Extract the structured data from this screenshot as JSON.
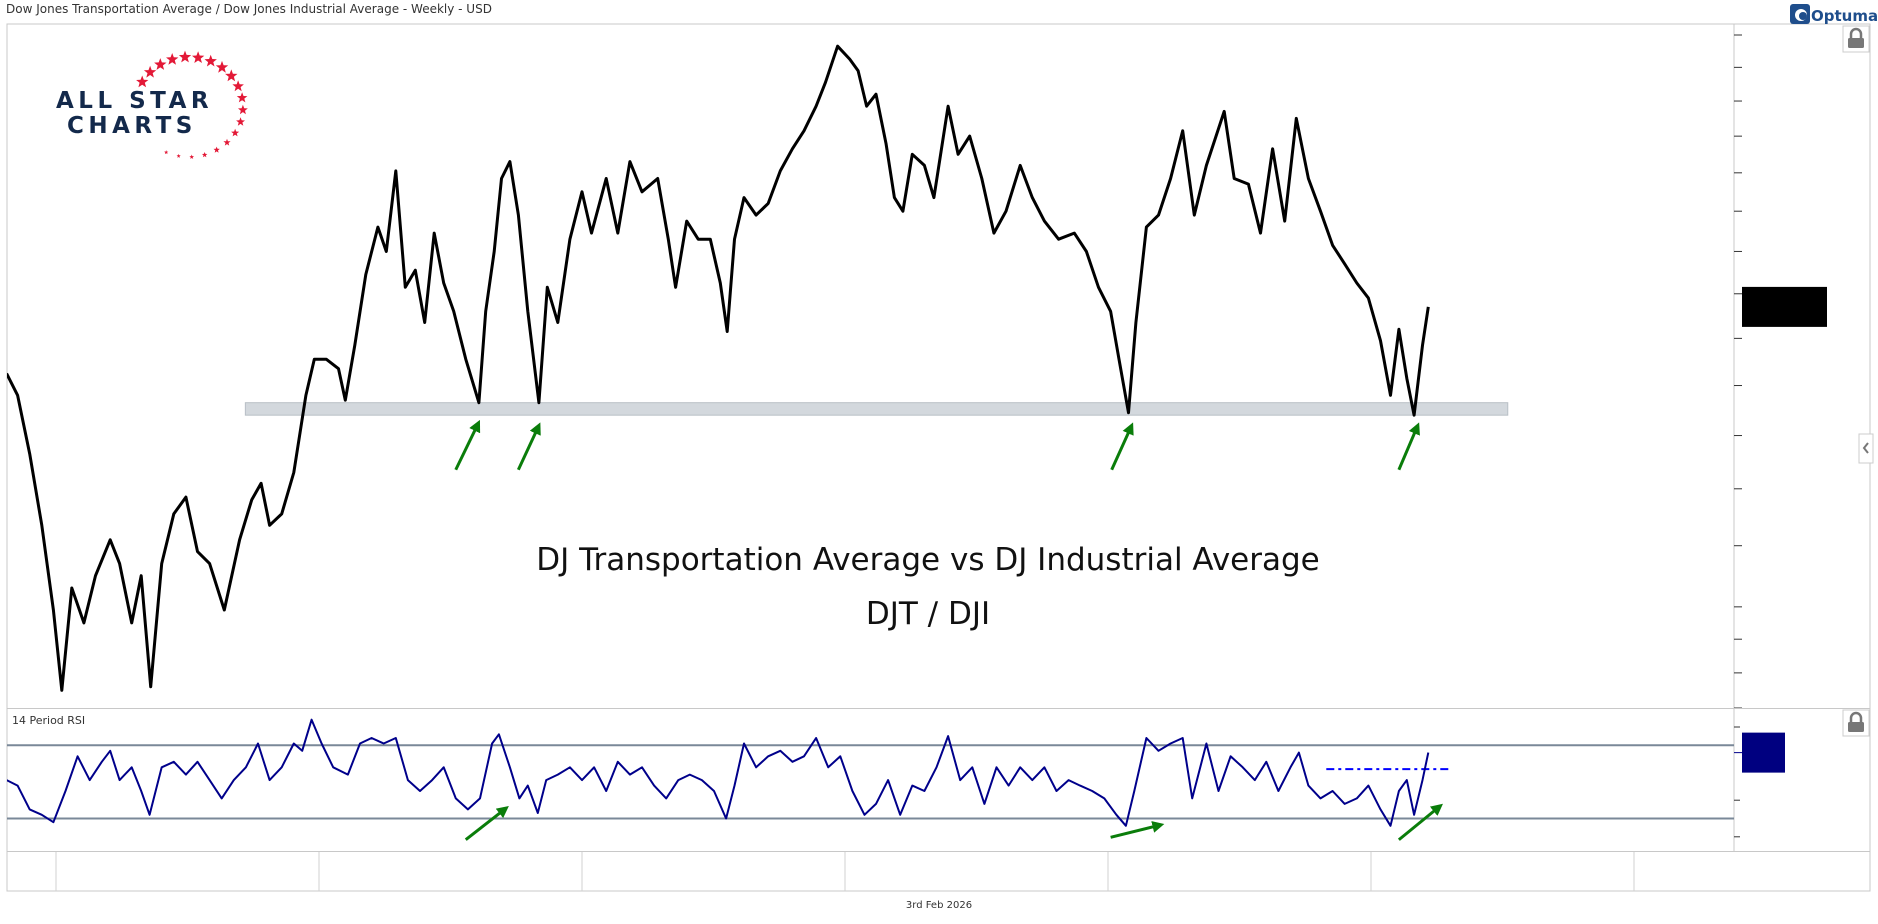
{
  "header": {
    "title": "Dow Jones Transportation Average / Dow Jones Industrial Average - Weekly - USD"
  },
  "footer": {
    "date": "3rd Feb 2026"
  },
  "branding": {
    "logo_text_line1": "ALL STAR",
    "logo_text_line2": "CHARTS",
    "platform_logo": "Optuma"
  },
  "colors": {
    "price_line": "#000000",
    "rsi_line": "#00008b",
    "rsi_bands": "#7a8898",
    "support_band": "#d3d8dd",
    "arrows": "#0a7d0a",
    "rsi_last_box": "#000080",
    "price_last_box": "#000000",
    "logo_navy": "#13294b",
    "logo_red": "#e31937"
  },
  "icons": {
    "lock": "lock-icon",
    "collapse": "chevron-left-icon"
  },
  "chart_data": [
    {
      "type": "line",
      "title": "DJ Transportation Average vs DJ Industrial Average",
      "subtitle": "DJT / DJI",
      "scale": "log",
      "ylim": [
        0.23,
        0.52
      ],
      "xlim": [
        1999.05,
        2032.3
      ],
      "yticks": [
        "0.520",
        "0.500",
        "0.480",
        "0.460",
        "0.440",
        "0.420",
        "0.400",
        "0.380",
        "0.360",
        "0.340",
        "0.320",
        "0.300",
        "0.280",
        "0.260",
        "0.250",
        "0.240",
        "0.230"
      ],
      "xticks": [
        "2000",
        "2005",
        "2010",
        "2015",
        "2020",
        "2025",
        "2030"
      ],
      "last_value": "0.374",
      "grid": false,
      "support_band": {
        "x": [
          2003.6,
          2027.6
        ],
        "y": [
          0.328,
          0.333
        ]
      },
      "arrows": [
        {
          "from": [
            2007.6,
            0.307
          ],
          "to": [
            2008.01,
            0.324
          ]
        },
        {
          "from": [
            2008.79,
            0.307
          ],
          "to": [
            2009.16,
            0.323
          ]
        },
        {
          "from": [
            2020.07,
            0.307
          ],
          "to": [
            2020.43,
            0.323
          ]
        },
        {
          "from": [
            2025.53,
            0.307
          ],
          "to": [
            2025.87,
            0.323
          ]
        }
      ],
      "x": [
        1999.06,
        1999.27,
        1999.5,
        1999.73,
        1999.95,
        2000.11,
        2000.3,
        2000.53,
        2000.75,
        2001.03,
        2001.21,
        2001.44,
        2001.62,
        2001.8,
        2002.01,
        2002.24,
        2002.47,
        2002.69,
        2002.92,
        2003.2,
        2003.49,
        2003.72,
        2003.9,
        2004.06,
        2004.29,
        2004.52,
        2004.75,
        2004.91,
        2005.14,
        2005.37,
        2005.5,
        2005.68,
        2005.89,
        2006.12,
        2006.28,
        2006.46,
        2006.64,
        2006.83,
        2007.01,
        2007.19,
        2007.37,
        2007.56,
        2007.79,
        2008.04,
        2008.17,
        2008.33,
        2008.47,
        2008.63,
        2008.79,
        2008.97,
        2009.18,
        2009.34,
        2009.54,
        2009.77,
        2010.0,
        2010.18,
        2010.46,
        2010.68,
        2010.91,
        2011.14,
        2011.44,
        2011.64,
        2011.78,
        2011.99,
        2012.21,
        2012.44,
        2012.63,
        2012.76,
        2012.9,
        2013.08,
        2013.31,
        2013.54,
        2013.77,
        2014.0,
        2014.22,
        2014.45,
        2014.63,
        2014.86,
        2015.09,
        2015.25,
        2015.41,
        2015.59,
        2015.78,
        2015.94,
        2016.1,
        2016.28,
        2016.51,
        2016.69,
        2016.96,
        2017.15,
        2017.37,
        2017.6,
        2017.83,
        2018.06,
        2018.33,
        2018.56,
        2018.79,
        2019.06,
        2019.36,
        2019.59,
        2019.82,
        2020.05,
        2020.21,
        2020.39,
        2020.53,
        2020.73,
        2020.96,
        2021.19,
        2021.42,
        2021.64,
        2021.87,
        2022.21,
        2022.4,
        2022.67,
        2022.9,
        2023.13,
        2023.36,
        2023.58,
        2023.81,
        2024.04,
        2024.27,
        2024.5,
        2024.73,
        2024.95,
        2025.18,
        2025.37,
        2025.53,
        2025.68,
        2025.82,
        2025.98,
        2026.09
      ],
      "y": [
        0.345,
        0.336,
        0.313,
        0.287,
        0.259,
        0.235,
        0.266,
        0.255,
        0.27,
        0.282,
        0.274,
        0.255,
        0.27,
        0.236,
        0.274,
        0.291,
        0.297,
        0.278,
        0.274,
        0.259,
        0.282,
        0.296,
        0.302,
        0.287,
        0.291,
        0.306,
        0.336,
        0.351,
        0.351,
        0.347,
        0.334,
        0.357,
        0.389,
        0.412,
        0.4,
        0.441,
        0.383,
        0.391,
        0.367,
        0.409,
        0.385,
        0.372,
        0.351,
        0.333,
        0.372,
        0.4,
        0.437,
        0.446,
        0.418,
        0.372,
        0.333,
        0.383,
        0.367,
        0.406,
        0.43,
        0.409,
        0.437,
        0.409,
        0.446,
        0.43,
        0.437,
        0.406,
        0.383,
        0.415,
        0.406,
        0.406,
        0.385,
        0.363,
        0.406,
        0.427,
        0.418,
        0.424,
        0.441,
        0.453,
        0.463,
        0.477,
        0.491,
        0.513,
        0.505,
        0.498,
        0.477,
        0.484,
        0.456,
        0.427,
        0.42,
        0.45,
        0.444,
        0.427,
        0.477,
        0.45,
        0.46,
        0.437,
        0.409,
        0.42,
        0.444,
        0.427,
        0.415,
        0.406,
        0.409,
        0.4,
        0.383,
        0.372,
        0.351,
        0.329,
        0.367,
        0.412,
        0.418,
        0.437,
        0.463,
        0.418,
        0.444,
        0.474,
        0.437,
        0.434,
        0.409,
        0.453,
        0.415,
        0.47,
        0.437,
        0.42,
        0.403,
        0.394,
        0.385,
        0.378,
        0.359,
        0.336,
        0.364,
        0.343,
        0.328,
        0.357,
        0.374
      ]
    },
    {
      "type": "line",
      "title": "14 Period RSI",
      "ylim": [
        15,
        88
      ],
      "yticks": [
        "80",
        "40",
        "20"
      ],
      "last_value": "66",
      "bands": [
        70,
        30
      ],
      "dashed_level": {
        "value": 57,
        "x": [
          2024.15,
          2026.47
        ]
      },
      "arrows": [
        {
          "from": [
            2007.79,
            18.4
          ],
          "to": [
            2008.52,
            34.8
          ]
        },
        {
          "from": [
            2020.05,
            19.7
          ],
          "to": [
            2020.96,
            26.2
          ]
        },
        {
          "from": [
            2025.53,
            18.4
          ],
          "to": [
            2026.28,
            36.0
          ]
        }
      ],
      "x": [
        1999.06,
        1999.27,
        1999.5,
        1999.73,
        1999.95,
        2000.18,
        2000.41,
        2000.64,
        2000.87,
        2001.03,
        2001.21,
        2001.44,
        2001.62,
        2001.78,
        2002.01,
        2002.24,
        2002.47,
        2002.69,
        2002.92,
        2003.15,
        2003.38,
        2003.61,
        2003.84,
        2004.06,
        2004.29,
        2004.52,
        2004.68,
        2004.86,
        2005.05,
        2005.27,
        2005.55,
        2005.78,
        2006.0,
        2006.23,
        2006.46,
        2006.69,
        2006.92,
        2007.15,
        2007.37,
        2007.6,
        2007.83,
        2008.06,
        2008.29,
        2008.42,
        2008.63,
        2008.81,
        2008.97,
        2009.16,
        2009.32,
        2009.54,
        2009.77,
        2010.0,
        2010.23,
        2010.46,
        2010.68,
        2010.91,
        2011.14,
        2011.37,
        2011.6,
        2011.83,
        2012.05,
        2012.28,
        2012.51,
        2012.74,
        2012.9,
        2013.08,
        2013.31,
        2013.54,
        2013.77,
        2014.0,
        2014.22,
        2014.45,
        2014.68,
        2014.91,
        2015.14,
        2015.37,
        2015.59,
        2015.82,
        2016.05,
        2016.28,
        2016.51,
        2016.74,
        2016.96,
        2017.19,
        2017.42,
        2017.65,
        2017.88,
        2018.11,
        2018.33,
        2018.56,
        2018.79,
        2019.02,
        2019.25,
        2019.47,
        2019.7,
        2019.93,
        2020.16,
        2020.34,
        2020.5,
        2020.73,
        2020.96,
        2021.19,
        2021.42,
        2021.6,
        2021.87,
        2022.1,
        2022.33,
        2022.56,
        2022.79,
        2023.01,
        2023.24,
        2023.47,
        2023.63,
        2023.81,
        2024.04,
        2024.27,
        2024.5,
        2024.73,
        2024.95,
        2025.18,
        2025.37,
        2025.53,
        2025.68,
        2025.82,
        2025.98,
        2026.09
      ],
      "y": [
        51,
        48,
        35,
        32,
        28,
        45,
        64,
        51,
        61,
        67,
        51,
        58,
        45,
        32,
        58,
        61,
        54,
        61,
        51,
        41,
        51,
        58,
        71,
        51,
        58,
        71,
        67,
        84,
        71,
        58,
        54,
        71,
        74,
        71,
        74,
        51,
        45,
        51,
        58,
        41,
        35,
        41,
        71,
        76,
        58,
        41,
        48,
        33,
        51,
        54,
        58,
        51,
        58,
        45,
        61,
        54,
        58,
        48,
        41,
        51,
        54,
        51,
        45,
        30,
        48,
        71,
        58,
        64,
        67,
        61,
        64,
        74,
        58,
        64,
        45,
        32,
        38,
        51,
        32,
        48,
        45,
        58,
        75,
        51,
        58,
        38,
        58,
        48,
        58,
        51,
        58,
        45,
        51,
        48,
        45,
        41,
        32,
        26,
        45,
        74,
        67,
        71,
        74,
        41,
        71,
        45,
        64,
        58,
        51,
        61,
        45,
        58,
        66,
        48,
        41,
        45,
        38,
        41,
        48,
        35,
        26,
        45,
        51,
        32,
        51,
        66
      ]
    }
  ]
}
